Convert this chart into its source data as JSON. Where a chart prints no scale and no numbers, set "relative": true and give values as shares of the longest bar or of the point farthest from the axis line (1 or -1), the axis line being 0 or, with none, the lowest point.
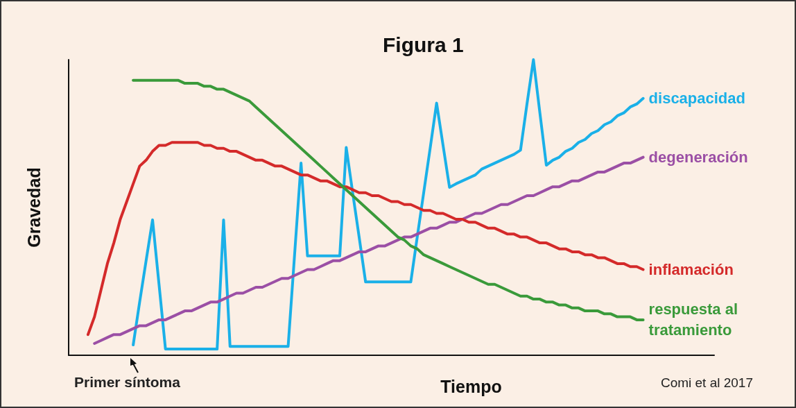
{
  "chart_data": {
    "type": "line",
    "title": "Figura 1",
    "xlabel": "Tiempo",
    "ylabel": "Gravedad",
    "relative": true,
    "marker": "none",
    "line_style": "solid",
    "annotations": [
      "Primer síntoma",
      "Comi et al 2017"
    ],
    "categories": [
      null,
      null,
      null,
      null,
      null,
      null,
      null,
      null,
      null,
      null,
      null,
      null,
      null,
      null,
      null,
      null,
      null,
      null,
      null,
      null,
      null,
      null,
      null,
      null,
      null,
      null,
      null,
      null,
      null,
      null,
      null,
      null,
      null,
      null,
      null,
      null,
      null,
      null,
      null,
      null,
      null,
      null,
      null,
      null,
      null,
      null,
      null,
      null,
      null,
      null,
      null,
      null,
      null,
      null,
      null,
      null,
      null,
      null,
      null,
      null,
      null,
      null,
      null,
      null,
      null,
      null,
      null,
      null,
      null,
      null,
      null,
      null,
      null,
      null,
      null,
      null,
      null,
      null,
      null,
      null,
      null,
      null,
      null,
      null,
      null,
      null,
      null,
      null,
      null,
      null,
      null,
      null,
      null,
      null,
      null,
      null,
      null,
      null,
      null,
      null,
      null
    ],
    "series": [
      {
        "name": "discapacidad",
        "color": "#1ab0e8",
        "values": [
          null,
          null,
          null,
          null,
          null,
          null,
          null,
          null,
          null,
          null,
          0.035,
          0.18,
          0.32,
          0.458,
          0.24,
          0.021,
          0.021,
          0.021,
          0.021,
          0.021,
          0.021,
          0.021,
          0.021,
          0.021,
          0.458,
          0.03,
          0.03,
          0.03,
          0.03,
          0.03,
          0.03,
          0.03,
          0.03,
          0.03,
          0.03,
          0.34,
          0.65,
          0.336,
          0.336,
          0.336,
          0.336,
          0.336,
          0.336,
          0.703,
          0.55,
          0.4,
          0.248,
          0.248,
          0.248,
          0.248,
          0.248,
          0.248,
          0.248,
          0.248,
          0.4,
          0.55,
          0.7,
          0.853,
          0.71,
          0.568,
          0.58,
          0.59,
          0.6,
          0.61,
          0.63,
          0.64,
          0.65,
          0.66,
          0.67,
          0.68,
          0.694,
          0.85,
          1,
          0.82,
          0.643,
          0.66,
          0.67,
          0.69,
          0.7,
          0.72,
          0.73,
          0.75,
          0.76,
          0.78,
          0.79,
          0.81,
          0.82,
          0.84,
          0.85,
          0.869,
          null,
          null,
          null,
          null,
          null,
          null,
          null,
          null,
          null,
          null,
          null
        ]
      },
      {
        "name": "degeneración",
        "color": "#9b4fa5",
        "values": [
          null,
          null,
          null,
          null,
          0.04,
          0.05,
          0.06,
          0.07,
          0.07,
          0.08,
          0.09,
          0.1,
          0.1,
          0.11,
          0.12,
          0.12,
          0.13,
          0.14,
          0.15,
          0.15,
          0.16,
          0.17,
          0.18,
          0.18,
          0.19,
          0.2,
          0.21,
          0.21,
          0.22,
          0.23,
          0.23,
          0.24,
          0.25,
          0.26,
          0.26,
          0.27,
          0.28,
          0.29,
          0.29,
          0.3,
          0.31,
          0.32,
          0.32,
          0.33,
          0.34,
          0.35,
          0.35,
          0.36,
          0.37,
          0.37,
          0.38,
          0.39,
          0.4,
          0.4,
          0.41,
          0.42,
          0.43,
          0.43,
          0.44,
          0.45,
          0.45,
          0.46,
          0.47,
          0.48,
          0.48,
          0.49,
          0.5,
          0.51,
          0.51,
          0.52,
          0.53,
          0.54,
          0.54,
          0.55,
          0.56,
          0.57,
          0.57,
          0.58,
          0.59,
          0.59,
          0.6,
          0.61,
          0.62,
          0.62,
          0.63,
          0.64,
          0.65,
          0.65,
          0.66,
          0.67,
          null,
          null,
          null,
          null,
          null,
          null,
          null,
          null,
          null,
          null,
          null
        ]
      },
      {
        "name": "inflamación",
        "color": "#d42a2a",
        "values": [
          null,
          null,
          null,
          0.07,
          0.13,
          0.22,
          0.31,
          0.38,
          0.46,
          0.52,
          0.58,
          0.64,
          0.66,
          0.69,
          0.71,
          0.71,
          0.72,
          0.72,
          0.72,
          0.72,
          0.72,
          0.71,
          0.71,
          0.7,
          0.7,
          0.69,
          0.69,
          0.68,
          0.67,
          0.66,
          0.66,
          0.65,
          0.64,
          0.64,
          0.63,
          0.62,
          0.61,
          0.61,
          0.6,
          0.59,
          0.59,
          0.58,
          0.57,
          0.57,
          0.56,
          0.55,
          0.55,
          0.54,
          0.54,
          0.53,
          0.52,
          0.52,
          0.51,
          0.51,
          0.5,
          0.49,
          0.49,
          0.48,
          0.48,
          0.47,
          0.46,
          0.46,
          0.45,
          0.45,
          0.44,
          0.43,
          0.43,
          0.42,
          0.41,
          0.41,
          0.4,
          0.4,
          0.39,
          0.38,
          0.38,
          0.37,
          0.36,
          0.36,
          0.35,
          0.35,
          0.34,
          0.34,
          0.33,
          0.33,
          0.32,
          0.31,
          0.31,
          0.3,
          0.3,
          0.29,
          null,
          null,
          null,
          null,
          null,
          null,
          null,
          null,
          null,
          null,
          null
        ]
      },
      {
        "name": "respuesta al tratamiento",
        "color": "#3a9a3a",
        "values": [
          null,
          null,
          null,
          null,
          null,
          null,
          null,
          null,
          null,
          null,
          0.93,
          0.93,
          0.93,
          0.93,
          0.93,
          0.93,
          0.93,
          0.93,
          0.92,
          0.92,
          0.92,
          0.91,
          0.91,
          0.9,
          0.9,
          0.89,
          0.88,
          0.87,
          0.86,
          0.84,
          0.82,
          0.8,
          0.78,
          0.76,
          0.74,
          0.72,
          0.7,
          0.68,
          0.66,
          0.64,
          0.62,
          0.6,
          0.58,
          0.56,
          0.54,
          0.52,
          0.5,
          0.48,
          0.46,
          0.44,
          0.42,
          0.4,
          0.39,
          0.37,
          0.36,
          0.34,
          0.33,
          0.32,
          0.31,
          0.3,
          0.29,
          0.28,
          0.27,
          0.26,
          0.25,
          0.24,
          0.24,
          0.23,
          0.22,
          0.21,
          0.2,
          0.2,
          0.19,
          0.19,
          0.18,
          0.18,
          0.17,
          0.17,
          0.16,
          0.16,
          0.15,
          0.15,
          0.15,
          0.14,
          0.14,
          0.13,
          0.13,
          0.13,
          0.12,
          0.12,
          null,
          null,
          null,
          null,
          null,
          null,
          null,
          null,
          null,
          null,
          null
        ]
      }
    ]
  }
}
